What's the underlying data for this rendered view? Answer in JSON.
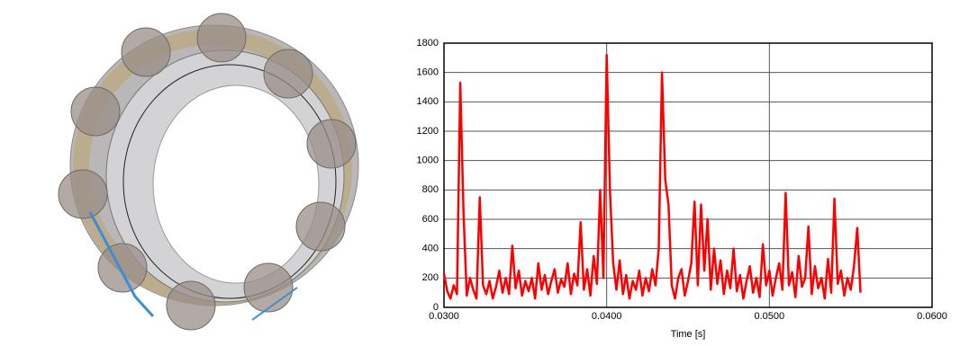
{
  "chart_data": {
    "type": "line",
    "x_label": "Time [s]",
    "x": [
      0.03,
      0.0302,
      0.0304,
      0.0306,
      0.0308,
      0.031,
      0.0312,
      0.0314,
      0.0316,
      0.0318,
      0.032,
      0.0322,
      0.0324,
      0.0326,
      0.0328,
      0.033,
      0.0332,
      0.0334,
      0.0336,
      0.0338,
      0.034,
      0.0342,
      0.0344,
      0.0346,
      0.0348,
      0.035,
      0.0352,
      0.0354,
      0.0356,
      0.0358,
      0.036,
      0.0362,
      0.0364,
      0.0366,
      0.0368,
      0.037,
      0.0372,
      0.0374,
      0.0376,
      0.0378,
      0.038,
      0.0382,
      0.0384,
      0.0386,
      0.0388,
      0.039,
      0.0392,
      0.0394,
      0.0396,
      0.0398,
      0.04,
      0.0402,
      0.0404,
      0.0406,
      0.0408,
      0.041,
      0.0412,
      0.0414,
      0.0416,
      0.0418,
      0.042,
      0.0422,
      0.0424,
      0.0426,
      0.0428,
      0.043,
      0.0432,
      0.0434,
      0.0436,
      0.0438,
      0.044,
      0.0442,
      0.0444,
      0.0446,
      0.0448,
      0.045,
      0.0452,
      0.0454,
      0.0456,
      0.0458,
      0.046,
      0.0462,
      0.0464,
      0.0466,
      0.0468,
      0.047,
      0.0472,
      0.0474,
      0.0476,
      0.0478,
      0.048,
      0.0482,
      0.0484,
      0.0486,
      0.0488,
      0.049,
      0.0492,
      0.0494,
      0.0496,
      0.0498,
      0.05,
      0.0502,
      0.0504,
      0.0506,
      0.0508,
      0.051,
      0.0512,
      0.0514,
      0.0516,
      0.0518,
      0.052,
      0.0522,
      0.0524,
      0.0526,
      0.0528,
      0.053,
      0.0532,
      0.0534,
      0.0536,
      0.0538,
      0.054,
      0.0542,
      0.0544,
      0.0546,
      0.0548,
      0.055,
      0.0552,
      0.0554,
      0.0556
    ],
    "series": [
      {
        "color": "#ff0000",
        "values": [
          230,
          110,
          60,
          150,
          90,
          1530,
          650,
          80,
          200,
          120,
          60,
          750,
          150,
          90,
          180,
          60,
          140,
          250,
          100,
          200,
          90,
          420,
          130,
          250,
          80,
          180,
          110,
          200,
          60,
          300,
          120,
          220,
          90,
          180,
          260,
          100,
          190,
          140,
          300,
          90,
          230,
          150,
          580,
          120,
          260,
          80,
          350,
          160,
          800,
          200,
          1720,
          800,
          300,
          120,
          320,
          90,
          220,
          60,
          180,
          120,
          250,
          80,
          200,
          110,
          260,
          150,
          400,
          1600,
          870,
          700,
          150,
          60,
          200,
          260,
          80,
          180,
          300,
          720,
          150,
          700,
          250,
          600,
          120,
          400,
          160,
          320,
          90,
          250,
          130,
          400,
          110,
          220,
          60,
          180,
          280,
          100,
          200,
          70,
          430,
          150,
          250,
          80,
          200,
          300,
          120,
          780,
          150,
          240,
          70,
          350,
          140,
          200,
          550,
          90,
          280,
          130,
          200,
          60,
          330,
          100,
          740,
          160,
          250,
          80,
          200,
          120,
          280,
          540,
          100
        ]
      }
    ],
    "xlim": [
      0.03,
      0.06
    ],
    "xticks": [
      {
        "value": 0.03,
        "label": "0.0300"
      },
      {
        "value": 0.04,
        "label": "0.0400"
      },
      {
        "value": 0.05,
        "label": "0.0500"
      },
      {
        "value": 0.06,
        "label": "0.0600"
      }
    ],
    "ylim": [
      0,
      1800
    ],
    "yticks": [
      0,
      200,
      400,
      600,
      800,
      1000,
      1200,
      1400,
      1600,
      1800
    ],
    "grid": true
  }
}
